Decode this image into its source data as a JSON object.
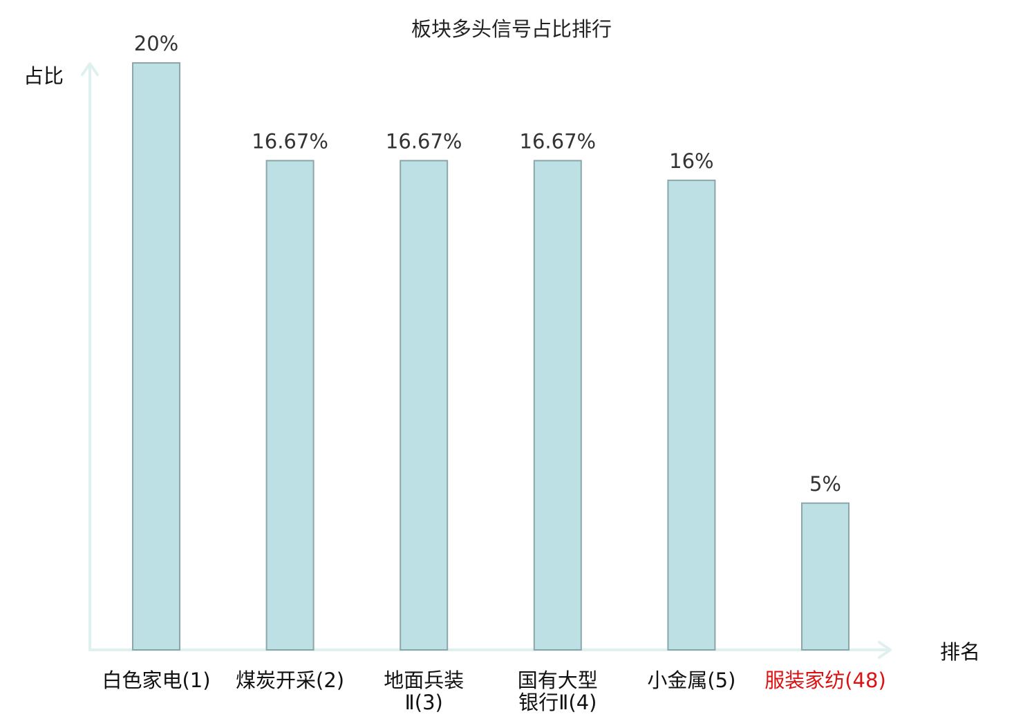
{
  "chart_data": {
    "type": "bar",
    "title": "板块多头信号占比排行",
    "ylabel": "占比",
    "xlabel": "排名",
    "categories": [
      [
        "白色家电(1)"
      ],
      [
        "煤炭开采(2)"
      ],
      [
        "地面兵装",
        "Ⅱ(3)"
      ],
      [
        "国有大型",
        "银行Ⅱ(4)"
      ],
      [
        "小金属(5)"
      ],
      [
        "服装家纺(48)"
      ]
    ],
    "values": [
      20,
      16.67,
      16.67,
      16.67,
      16,
      5
    ],
    "value_labels": [
      "20%",
      "16.67%",
      "16.67%",
      "16.67%",
      "16%",
      "5%"
    ],
    "ylim": [
      0,
      20
    ],
    "highlight_index": 5,
    "grid": false,
    "colors": {
      "bar_fill": "#bce0e3",
      "bar_stroke": "#8aa6aa",
      "axis": "#dff1ee",
      "highlight_label": "#dd1111"
    }
  }
}
